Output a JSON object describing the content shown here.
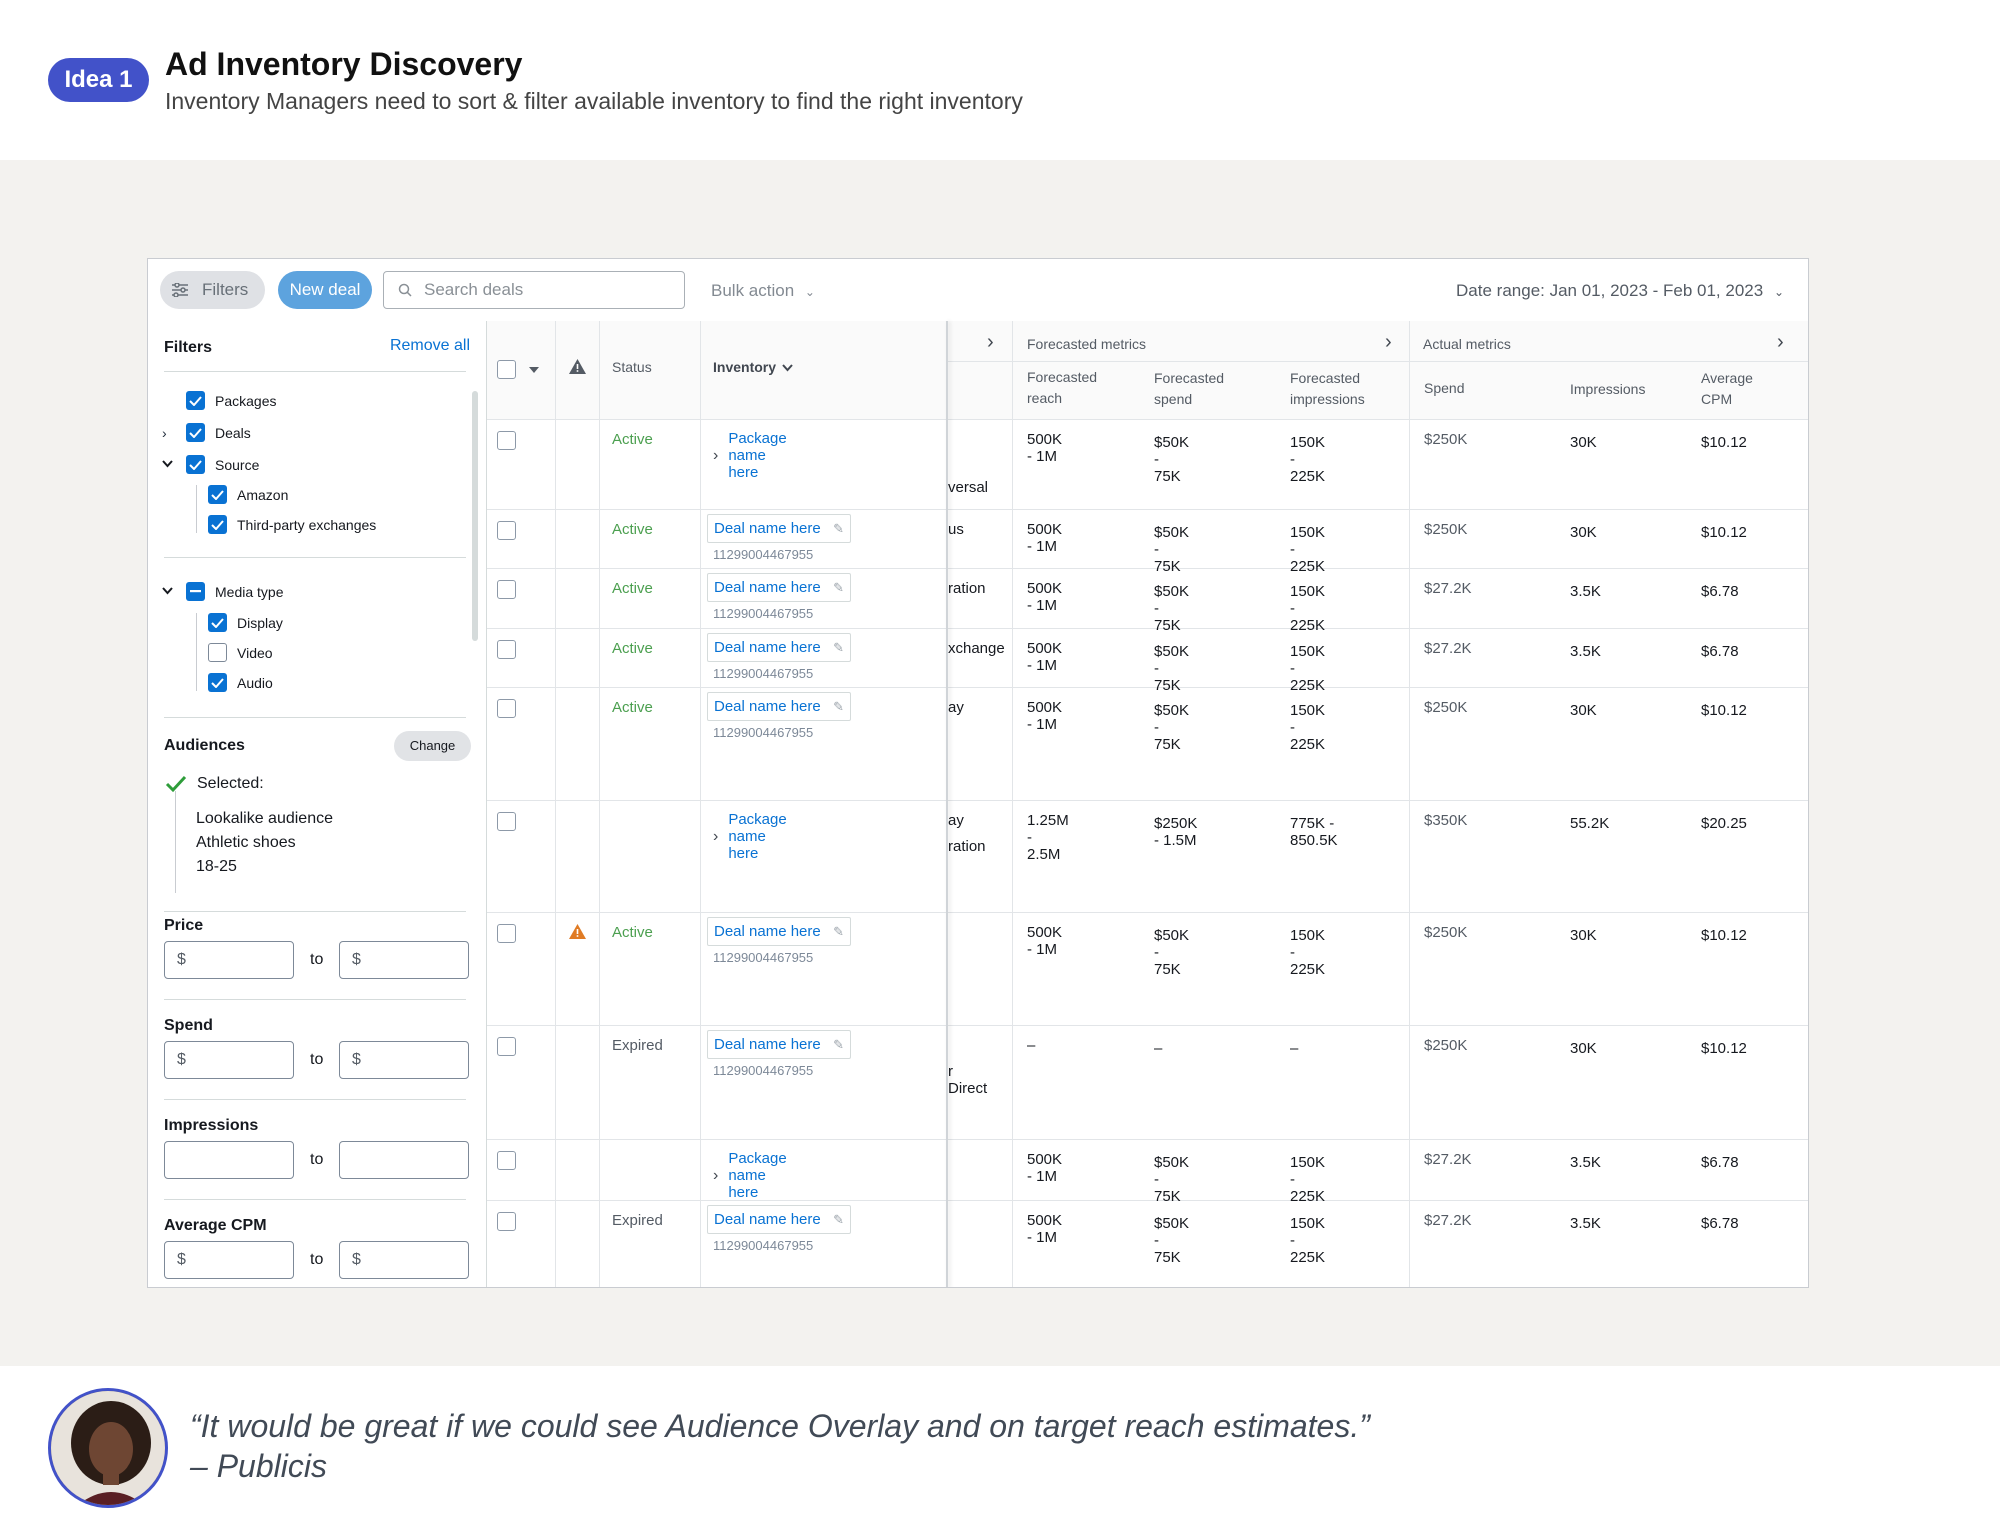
{
  "header": {
    "badge": "Idea 1",
    "title": "Ad Inventory Discovery",
    "subtitle": "Inventory Managers need to sort & filter available inventory to find the right inventory"
  },
  "toolbar": {
    "filters_label": "Filters",
    "new_deal_label": "New deal",
    "search_placeholder": "Search deals",
    "bulk_action_label": "Bulk action",
    "date_range": "Date range: Jan 01, 2023 - Feb 01, 2023"
  },
  "filters": {
    "title": "Filters",
    "remove_all": "Remove all",
    "items": [
      {
        "label": "Packages",
        "checked": true
      },
      {
        "label": "Deals",
        "checked": true
      },
      {
        "label": "Source",
        "checked": true
      },
      {
        "label": "Amazon",
        "checked": true
      },
      {
        "label": "Third-party exchanges",
        "checked": true
      },
      {
        "label": "Media type",
        "checked": "partial"
      },
      {
        "label": "Display",
        "checked": true
      },
      {
        "label": "Video",
        "checked": false
      },
      {
        "label": "Audio",
        "checked": true
      }
    ],
    "audiences": {
      "title": "Audiences",
      "change_label": "Change",
      "selected_label": "Selected:",
      "values": [
        "Lookalike audience",
        "Athletic shoes",
        "18-25"
      ]
    },
    "price": {
      "title": "Price",
      "from": "$",
      "to_label": "to",
      "to": "$"
    },
    "spend": {
      "title": "Spend",
      "from": "$",
      "to_label": "to",
      "to": "$"
    },
    "impressions": {
      "title": "Impressions",
      "from": "",
      "to_label": "to",
      "to": ""
    },
    "avg_cpm": {
      "title": "Average CPM",
      "from": "$",
      "to_label": "to",
      "to": "$"
    }
  },
  "table": {
    "headers": {
      "status": "Status",
      "inventory": "Inventory",
      "forecasted_group": "Forecasted metrics",
      "actual_group": "Actual metrics",
      "f_reach_1": "Forecasted",
      "f_reach_2": "reach",
      "f_spend_1": "Forecasted",
      "f_spend_2": "spend",
      "f_impr_1": "Forecasted",
      "f_impr_2": "impressions",
      "spend": "Spend",
      "impressions": "Impressions",
      "cpm_1": "Average",
      "cpm_2": "CPM"
    },
    "rows": [
      {
        "status": "Active",
        "kind": "package",
        "name": "Package name here",
        "id": "",
        "trunc": "versal",
        "f_reach": "500K - 1M",
        "f_spend": "$50K - 75K",
        "f_impr": "150K - 225K",
        "spend": "$250K",
        "impr": "30K",
        "cpm": "$10.12",
        "warn": false
      },
      {
        "status": "Active",
        "kind": "deal",
        "name": "Deal name here",
        "id": "11299004467955",
        "trunc": "us",
        "f_reach": "500K - 1M",
        "f_spend": "$50K - 75K",
        "f_impr": "150K - 225K",
        "spend": "$250K",
        "impr": "30K",
        "cpm": "$10.12",
        "warn": false
      },
      {
        "status": "Active",
        "kind": "deal",
        "name": "Deal name here",
        "id": "11299004467955",
        "trunc": "ration",
        "f_reach": "500K - 1M",
        "f_spend": "$50K - 75K",
        "f_impr": "150K - 225K",
        "spend": "$27.2K",
        "impr": "3.5K",
        "cpm": "$6.78",
        "warn": false
      },
      {
        "status": "Active",
        "kind": "deal",
        "name": "Deal name here",
        "id": "11299004467955",
        "trunc": "xchange",
        "f_reach": "500K - 1M",
        "f_spend": "$50K - 75K",
        "f_impr": "150K - 225K",
        "spend": "$27.2K",
        "impr": "3.5K",
        "cpm": "$6.78",
        "warn": false
      },
      {
        "status": "Active",
        "kind": "deal",
        "name": "Deal name here",
        "id": "11299004467955",
        "trunc": "ay",
        "f_reach": "500K - 1M",
        "f_spend": "$50K - 75K",
        "f_impr": "150K - 225K",
        "spend": "$250K",
        "impr": "30K",
        "cpm": "$10.12",
        "warn": false
      },
      {
        "status": "",
        "kind": "package",
        "name": "Package name here",
        "id": "",
        "trunc": "ay",
        "trunc2": "ration",
        "f_reach": "1.25M - 2.5M",
        "f_spend": "$250K - 1.5M",
        "f_impr": "775K - 850.5K",
        "spend": "$350K",
        "impr": "55.2K",
        "cpm": "$20.25",
        "warn": false
      },
      {
        "status": "Active",
        "kind": "deal",
        "name": "Deal name here",
        "id": "11299004467955",
        "trunc": "",
        "f_reach": "500K - 1M",
        "f_spend": "$50K - 75K",
        "f_impr": "150K - 225K",
        "spend": "$250K",
        "impr": "30K",
        "cpm": "$10.12",
        "warn": true
      },
      {
        "status": "Expired",
        "kind": "deal",
        "name": "Deal name here",
        "id": "11299004467955",
        "trunc": "",
        "trunc2": "r Direct",
        "f_reach": "–",
        "f_spend": "–",
        "f_impr": "–",
        "spend": "$250K",
        "impr": "30K",
        "cpm": "$10.12",
        "warn": false
      },
      {
        "status": "",
        "kind": "package",
        "name": "Package name here",
        "id": "",
        "trunc": "",
        "f_reach": "500K - 1M",
        "f_spend": "$50K - 75K",
        "f_impr": "150K - 225K",
        "spend": "$27.2K",
        "impr": "3.5K",
        "cpm": "$6.78",
        "warn": false
      },
      {
        "status": "Expired",
        "kind": "deal",
        "name": "Deal name here",
        "id": "11299004467955",
        "trunc": "",
        "f_reach": "500K - 1M",
        "f_spend": "$50K - 75K",
        "f_impr": "150K - 225K",
        "spend": "$27.2K",
        "impr": "3.5K",
        "cpm": "$6.78",
        "warn": false
      }
    ]
  },
  "quote": {
    "text": "“It would be great if we could see Audience Overlay and on target reach estimates.”",
    "source": "– Publicis"
  },
  "colors": {
    "accent": "#4252c9",
    "link": "#0972d3",
    "active": "#4b9f4f",
    "new_deal": "#5da3de",
    "warning": "#e07b24"
  }
}
